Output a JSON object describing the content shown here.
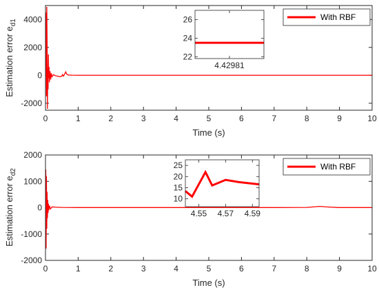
{
  "colors": {
    "series": "#ff0000",
    "axis": "#262626"
  },
  "chart_data": [
    {
      "type": "line",
      "xlabel": "Time (s)",
      "ylabel_base": "Estimation error e",
      "ylabel_sub": "d1",
      "xlim": [
        0,
        10
      ],
      "ylim": [
        -2500,
        5000
      ],
      "xticks": [
        0,
        1,
        2,
        3,
        4,
        5,
        6,
        7,
        8,
        9,
        10
      ],
      "yticks": [
        -2000,
        0,
        2000,
        4000
      ],
      "legend": {
        "placement": "top-right",
        "entries": [
          "With RBF"
        ]
      },
      "series": [
        {
          "name": "With RBF",
          "x": [
            0,
            0.01,
            0.02,
            0.03,
            0.04,
            0.05,
            0.06,
            0.07,
            0.08,
            0.09,
            0.1,
            0.11,
            0.12,
            0.14,
            0.16,
            0.18,
            0.2,
            0.25,
            0.3,
            0.35,
            0.4,
            0.45,
            0.5,
            0.52,
            0.55,
            0.6,
            0.62,
            0.65,
            0.7,
            0.8,
            1,
            2,
            3,
            4,
            5,
            6,
            7,
            8,
            9,
            10
          ],
          "y": [
            1500,
            4500,
            3000,
            -1500,
            4900,
            2500,
            -2400,
            500,
            -1000,
            1500,
            -200,
            600,
            -500,
            300,
            -300,
            150,
            -100,
            50,
            -30,
            -50,
            -80,
            -100,
            -60,
            50,
            -60,
            150,
            250,
            80,
            20,
            10,
            5,
            5,
            5,
            5,
            5,
            5,
            5,
            5,
            5,
            5
          ]
        }
      ],
      "inset": {
        "x": [
          4.4298,
          4.42982
        ],
        "y": [
          23.5,
          23.5
        ],
        "xticks": [
          4.42981
        ],
        "xtick_labels": [
          "4.42981"
        ],
        "yticks": [
          22,
          24,
          26
        ],
        "ylim": [
          21.8,
          27
        ]
      }
    },
    {
      "type": "line",
      "xlabel": "Time (s)",
      "ylabel_base": "Estimation error e",
      "ylabel_sub": "d2",
      "xlim": [
        0,
        10
      ],
      "ylim": [
        -2000,
        2000
      ],
      "xticks": [
        0,
        1,
        2,
        3,
        4,
        5,
        6,
        7,
        8,
        9,
        10
      ],
      "yticks": [
        -2000,
        -1000,
        0,
        1000,
        2000
      ],
      "legend": {
        "placement": "top-right",
        "entries": [
          "With RBF"
        ]
      },
      "series": [
        {
          "name": "With RBF",
          "x": [
            0,
            0.01,
            0.02,
            0.03,
            0.04,
            0.05,
            0.06,
            0.07,
            0.08,
            0.09,
            0.1,
            0.12,
            0.15,
            0.2,
            0.3,
            0.5,
            1,
            2,
            3,
            4,
            5,
            6,
            7,
            8,
            8.4,
            8.6,
            9,
            10
          ],
          "y": [
            -200,
            1450,
            -1550,
            1200,
            -800,
            600,
            -400,
            300,
            -200,
            150,
            -100,
            80,
            -50,
            30,
            20,
            10,
            5,
            5,
            5,
            5,
            5,
            5,
            5,
            10,
            50,
            30,
            5,
            5
          ]
        }
      ],
      "inset": {
        "x": [
          4.54,
          4.545,
          4.555,
          4.56,
          4.57,
          4.58,
          4.595
        ],
        "y": [
          13.5,
          11,
          22,
          16,
          18.5,
          17.5,
          16.5
        ],
        "xticks": [
          4.55,
          4.57,
          4.59
        ],
        "xtick_labels": [
          "4.55",
          "4.57",
          "4.59"
        ],
        "yticks": [
          10,
          15,
          20,
          25
        ],
        "ylim": [
          6.5,
          27.5
        ]
      }
    }
  ]
}
